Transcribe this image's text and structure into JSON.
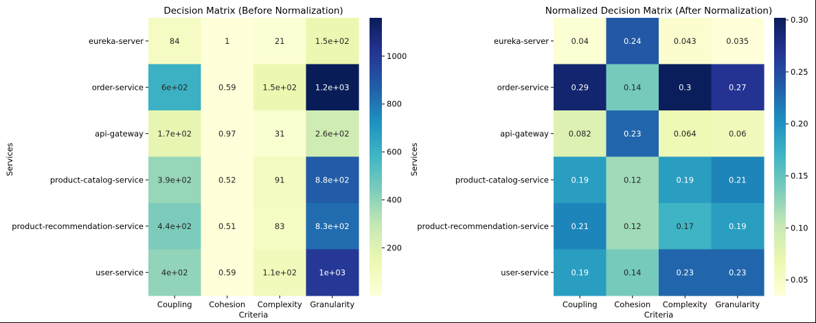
{
  "chart_data": [
    {
      "type": "heatmap",
      "title": "Decision Matrix (Before Normalization)",
      "xlabel": "Criteria",
      "ylabel": "Services",
      "x": [
        "Coupling",
        "Cohesion",
        "Complexity",
        "Granularity"
      ],
      "y": [
        "eureka-server",
        "order-service",
        "api-gateway",
        "product-catalog-service",
        "product-recommendation-service",
        "user-service"
      ],
      "values": [
        [
          84,
          1,
          21,
          150
        ],
        [
          600,
          0.59,
          150,
          1160
        ],
        [
          170,
          0.97,
          31,
          260
        ],
        [
          390,
          0.52,
          91,
          880
        ],
        [
          440,
          0.51,
          83,
          830
        ],
        [
          400,
          0.59,
          110,
          1000
        ]
      ],
      "annotations": [
        [
          "84",
          "1",
          "21",
          "1.5e+02"
        ],
        [
          "6e+02",
          "0.59",
          "1.5e+02",
          "1.2e+03"
        ],
        [
          "1.7e+02",
          "0.97",
          "31",
          "2.6e+02"
        ],
        [
          "3.9e+02",
          "0.52",
          "91",
          "8.8e+02"
        ],
        [
          "4.4e+02",
          "0.51",
          "83",
          "8.3e+02"
        ],
        [
          "4e+02",
          "0.59",
          "1.1e+02",
          "1e+03"
        ]
      ],
      "colorbar": {
        "min": 0.51,
        "max": 1160,
        "ticks": [
          200,
          400,
          600,
          800,
          1000
        ],
        "colormap": "YlGnBu"
      }
    },
    {
      "type": "heatmap",
      "title": "Normalized Decision Matrix (After Normalization)",
      "xlabel": "Criteria",
      "ylabel": "Services",
      "x": [
        "Coupling",
        "Cohesion",
        "Complexity",
        "Granularity"
      ],
      "y": [
        "eureka-server",
        "order-service",
        "api-gateway",
        "product-catalog-service",
        "product-recommendation-service",
        "user-service"
      ],
      "values": [
        [
          0.04,
          0.24,
          0.043,
          0.035
        ],
        [
          0.29,
          0.14,
          0.3,
          0.27
        ],
        [
          0.082,
          0.23,
          0.064,
          0.06
        ],
        [
          0.19,
          0.12,
          0.19,
          0.21
        ],
        [
          0.21,
          0.12,
          0.17,
          0.19
        ],
        [
          0.19,
          0.14,
          0.23,
          0.23
        ]
      ],
      "annotations": [
        [
          "0.04",
          "0.24",
          "0.043",
          "0.035"
        ],
        [
          "0.29",
          "0.14",
          "0.3",
          "0.27"
        ],
        [
          "0.082",
          "0.23",
          "0.064",
          "0.06"
        ],
        [
          "0.19",
          "0.12",
          "0.19",
          "0.21"
        ],
        [
          "0.21",
          "0.12",
          "0.17",
          "0.19"
        ],
        [
          "0.19",
          "0.14",
          "0.23",
          "0.23"
        ]
      ],
      "colorbar": {
        "min": 0.035,
        "max": 0.302,
        "ticks": [
          0.05,
          0.1,
          0.15,
          0.2,
          0.25,
          0.3
        ],
        "tick_labels": [
          "0.05",
          "0.10",
          "0.15",
          "0.20",
          "0.25",
          "0.30"
        ],
        "colormap": "YlGnBu"
      }
    }
  ]
}
